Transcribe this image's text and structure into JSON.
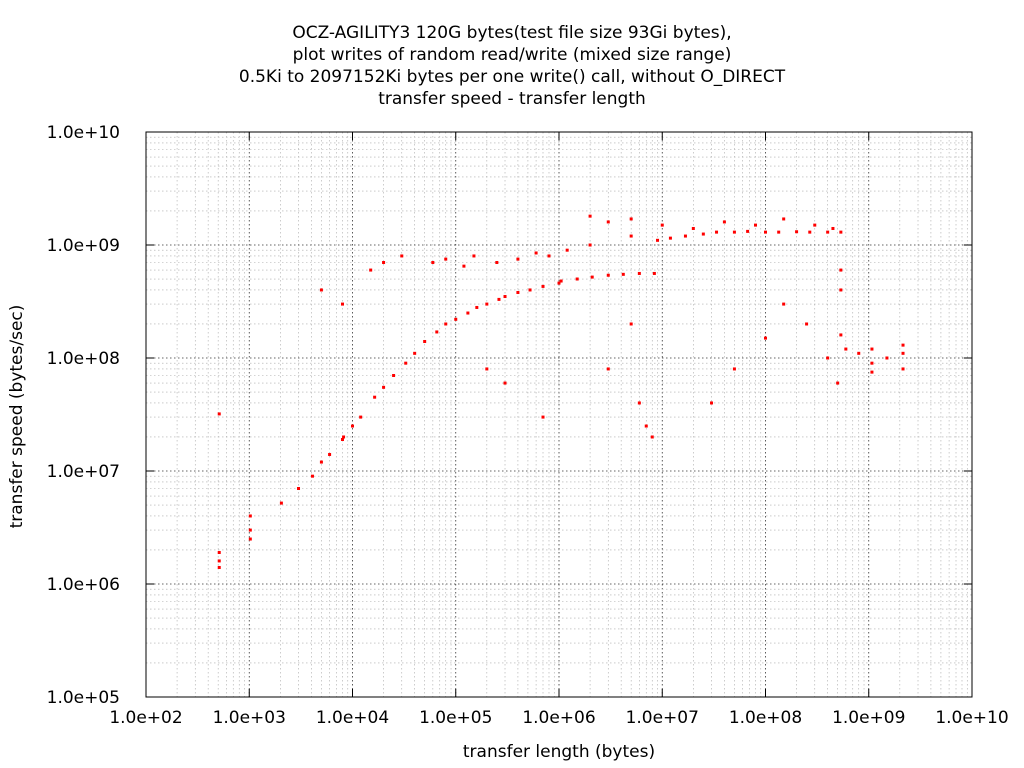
{
  "chart_data": {
    "type": "scatter",
    "title_lines": [
      "OCZ-AGILITY3 120G bytes(test file size 93Gi bytes),",
      "plot writes of random read/write (mixed size range)",
      "0.5Ki to 2097152Ki bytes per one write() call, without O_DIRECT",
      "transfer speed - transfer length"
    ],
    "xlabel": "transfer length (bytes)",
    "ylabel": "transfer speed (bytes/sec)",
    "x_scale": "log",
    "y_scale": "log",
    "xlim": [
      100,
      10000000000
    ],
    "ylim": [
      100000,
      10000000000
    ],
    "x_ticks": [
      {
        "value": 100,
        "label": "1.0e+02"
      },
      {
        "value": 1000,
        "label": "1.0e+03"
      },
      {
        "value": 10000,
        "label": "1.0e+04"
      },
      {
        "value": 100000,
        "label": "1.0e+05"
      },
      {
        "value": 1000000,
        "label": "1.0e+06"
      },
      {
        "value": 10000000,
        "label": "1.0e+07"
      },
      {
        "value": 100000000,
        "label": "1.0e+08"
      },
      {
        "value": 1000000000,
        "label": "1.0e+09"
      },
      {
        "value": 10000000000,
        "label": "1.0e+10"
      }
    ],
    "y_ticks": [
      {
        "value": 100000,
        "label": "1.0e+05"
      },
      {
        "value": 1000000,
        "label": "1.0e+06"
      },
      {
        "value": 10000000,
        "label": "1.0e+07"
      },
      {
        "value": 100000000,
        "label": "1.0e+08"
      },
      {
        "value": 1000000000,
        "label": "1.0e+09"
      },
      {
        "value": 10000000000,
        "label": "1.0e+10"
      }
    ],
    "grid": true,
    "grid_minor": true,
    "legend": "none",
    "point_color": "#ff0000",
    "series": [
      {
        "x": [
          512,
          512,
          512,
          512,
          1024,
          1024,
          1024,
          2048,
          3000,
          4096,
          5000,
          6000,
          8000,
          8192,
          10000,
          12000,
          16384,
          20000,
          25000,
          32768,
          40000,
          50000,
          65536,
          80000,
          100000,
          131072,
          160000,
          200000,
          262144,
          300000,
          400000,
          524288,
          700000,
          1000000,
          1048576,
          1500000,
          2097152,
          3000000,
          4194304,
          6000000,
          8388608,
          9000000,
          12000000,
          16777216,
          25000000,
          33554432,
          50000000,
          67108864,
          100000000,
          134217728,
          200000000,
          268435456,
          400000000,
          536870912,
          536870912,
          536870912,
          536870912,
          600000000,
          800000000,
          1073741824,
          1073741824,
          1073741824,
          1500000000,
          2147483648,
          2147483648,
          2147483648,
          15000,
          20000,
          30000,
          60000,
          80000,
          120000,
          150000,
          250000,
          400000,
          600000,
          800000,
          1200000,
          2000000,
          5000000,
          10000000,
          20000000,
          40000000,
          80000000,
          150000000,
          300000000,
          450000000,
          5000,
          8000,
          2000000,
          3000000,
          5000000,
          6000000,
          7000000,
          30000000,
          50000000,
          100000000,
          150000000,
          250000000,
          400000000,
          500000000,
          200000,
          300000,
          700000,
          8000000,
          3000000,
          5000000
        ],
        "y": [
          1900000,
          1600000,
          1400000,
          32000000,
          4000000,
          3000000,
          2500000,
          5200000,
          7000000,
          9000000,
          12000000,
          14000000,
          19000000,
          20000000,
          25000000,
          30000000,
          45000000,
          55000000,
          70000000,
          90000000,
          110000000,
          140000000,
          170000000,
          200000000,
          220000000,
          250000000,
          280000000,
          300000000,
          330000000,
          350000000,
          380000000,
          400000000,
          430000000,
          460000000,
          480000000,
          500000000,
          520000000,
          540000000,
          550000000,
          560000000,
          560000000,
          1100000000,
          1150000000,
          1200000000,
          1250000000,
          1300000000,
          1300000000,
          1320000000,
          1300000000,
          1300000000,
          1310000000,
          1300000000,
          1300000000,
          1300000000,
          600000000,
          400000000,
          160000000,
          120000000,
          110000000,
          120000000,
          90000000,
          75000000,
          100000000,
          130000000,
          110000000,
          80000000,
          600000000,
          700000000,
          800000000,
          700000000,
          750000000,
          650000000,
          800000000,
          700000000,
          750000000,
          850000000,
          800000000,
          900000000,
          1000000000,
          1200000000,
          1500000000,
          1400000000,
          1600000000,
          1500000000,
          1700000000,
          1500000000,
          1400000000,
          400000000,
          300000000,
          1800000000,
          1600000000,
          1700000000,
          40000000,
          25000000,
          40000000,
          80000000,
          150000000,
          300000000,
          200000000,
          100000000,
          60000000,
          80000000,
          60000000,
          30000000,
          20000000,
          80000000,
          200000000
        ]
      }
    ]
  }
}
